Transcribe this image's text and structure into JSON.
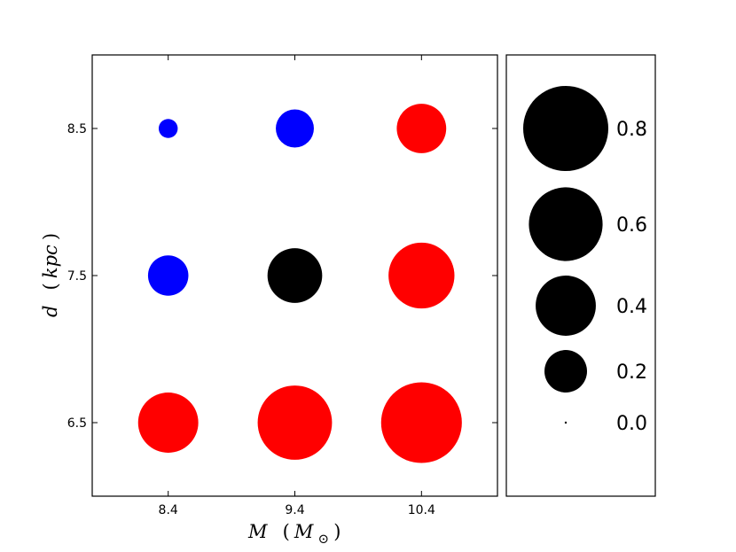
{
  "chart_data": {
    "type": "scatter",
    "title": "",
    "xlabel": {
      "var": "M",
      "unit_base": "M",
      "unit_sub": "⊙"
    },
    "ylabel": {
      "var": "d",
      "unit": "kpc"
    },
    "xlim": [
      7.8,
      11.0
    ],
    "ylim": [
      6.0,
      9.0
    ],
    "x_ticks": [
      8.4,
      9.4,
      10.4
    ],
    "x_tick_labels": [
      "8.4",
      "9.4",
      "10.4"
    ],
    "y_ticks": [
      6.5,
      7.5,
      8.5
    ],
    "y_tick_labels": [
      "6.5",
      "7.5",
      "8.5"
    ],
    "size_scale_max": 0.8,
    "points": [
      {
        "x": 8.4,
        "y": 8.5,
        "value": 0.04,
        "color": "#0000ff"
      },
      {
        "x": 9.4,
        "y": 8.5,
        "value": 0.16,
        "color": "#0000ff"
      },
      {
        "x": 10.4,
        "y": 8.5,
        "value": 0.27,
        "color": "#ff0000"
      },
      {
        "x": 8.4,
        "y": 7.5,
        "value": 0.18,
        "color": "#0000ff"
      },
      {
        "x": 9.4,
        "y": 7.5,
        "value": 0.33,
        "color": "#000000"
      },
      {
        "x": 10.4,
        "y": 7.5,
        "value": 0.48,
        "color": "#ff0000"
      },
      {
        "x": 8.4,
        "y": 6.5,
        "value": 0.4,
        "color": "#ff0000"
      },
      {
        "x": 9.4,
        "y": 6.5,
        "value": 0.61,
        "color": "#ff0000"
      },
      {
        "x": 10.4,
        "y": 6.5,
        "value": 0.72,
        "color": "#ff0000"
      }
    ],
    "size_legend": {
      "color": "#000000",
      "entries": [
        {
          "value": 0.8,
          "label": "0.8"
        },
        {
          "value": 0.6,
          "label": "0.6"
        },
        {
          "value": 0.4,
          "label": "0.4"
        },
        {
          "value": 0.2,
          "label": "0.2"
        },
        {
          "value": 0.0,
          "label": "0.0"
        }
      ]
    }
  }
}
